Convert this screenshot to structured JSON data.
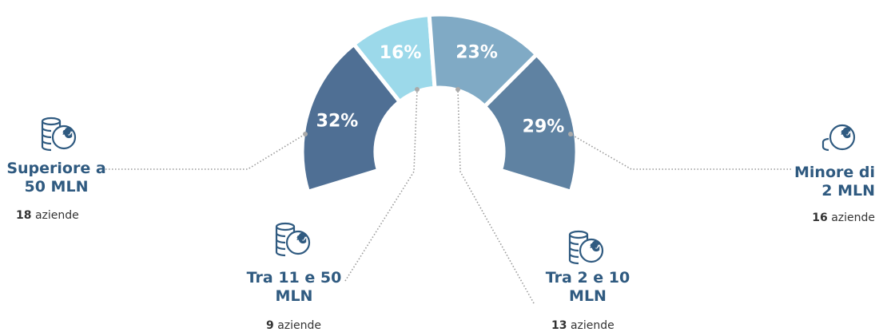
{
  "chart_data": {
    "type": "half-donut",
    "categories": [
      "Superiore a 50 MLN",
      "Tra 11 e 50 MLN",
      "Tra 2 e 10 MLN",
      "Minore di 2 MLN"
    ],
    "values": [
      32,
      16,
      23,
      29
    ],
    "value_labels": [
      "32%",
      "16%",
      "23%",
      "29%"
    ],
    "colors": [
      "#4f6f94",
      "#9cd9ea",
      "#80aac5",
      "#5f82a2"
    ],
    "counts": [
      18,
      9,
      13,
      16
    ],
    "count_label": "aziende"
  }
}
